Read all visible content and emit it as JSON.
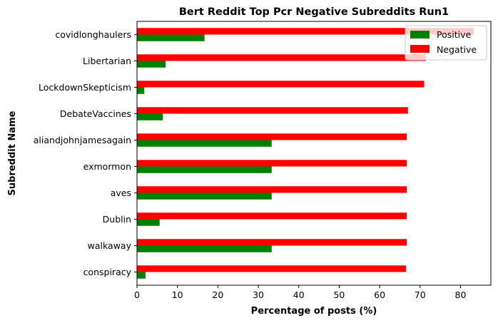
{
  "chart_data": {
    "type": "bar",
    "orientation": "horizontal",
    "title": "Bert Reddit Top Pcr Negative Subreddits Run1",
    "xlabel": "Percentage of posts (%)",
    "ylabel": "Subreddit Name",
    "xlim": [
      0,
      87.5
    ],
    "xticks": [
      0,
      10,
      20,
      30,
      40,
      50,
      60,
      70,
      80
    ],
    "categories": [
      "covidlonghaulers",
      "Libertarian",
      "LockdownSkepticism",
      "DebateVaccines",
      "aliandjohnjamesagain",
      "exmormon",
      "aves",
      "Dublin",
      "walkaway",
      "conspiracy"
    ],
    "series": [
      {
        "name": "Positive",
        "color": "#008000",
        "values": [
          16.7,
          7.1,
          1.8,
          6.4,
          33.3,
          33.3,
          33.3,
          5.6,
          33.3,
          2.1
        ]
      },
      {
        "name": "Negative",
        "color": "#ff0000",
        "values": [
          83.3,
          71.4,
          71.0,
          67.0,
          66.7,
          66.7,
          66.7,
          66.7,
          66.7,
          66.5
        ]
      }
    ],
    "legend": "top-right",
    "grid": false
  }
}
